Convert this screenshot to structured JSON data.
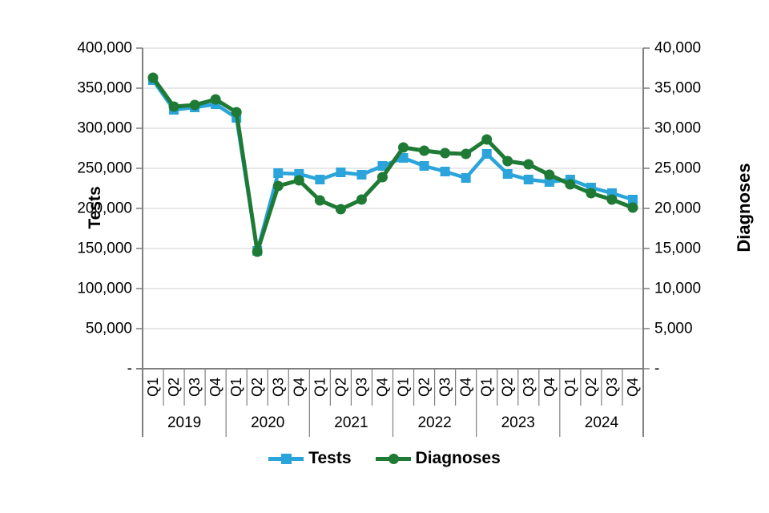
{
  "chart_data": {
    "type": "line",
    "title": "",
    "categories": [
      "Q1",
      "Q2",
      "Q3",
      "Q4",
      "Q1",
      "Q2",
      "Q3",
      "Q4",
      "Q1",
      "Q2",
      "Q3",
      "Q4",
      "Q1",
      "Q2",
      "Q3",
      "Q4",
      "Q1",
      "Q2",
      "Q3",
      "Q4",
      "Q1",
      "Q2",
      "Q3",
      "Q4"
    ],
    "year_groups": [
      "2019",
      "2020",
      "2021",
      "2022",
      "2023",
      "2024"
    ],
    "series": [
      {
        "name": "Tests",
        "axis": "left",
        "color": "#2AA4DA",
        "marker": "square",
        "values": [
          360000,
          323000,
          326000,
          330000,
          313000,
          147000,
          244000,
          243000,
          236000,
          245000,
          242000,
          253000,
          263000,
          253000,
          246000,
          238000,
          268000,
          243000,
          236000,
          233000,
          236000,
          226000,
          219000,
          211000
        ]
      },
      {
        "name": "Diagnoses",
        "axis": "right",
        "color": "#1E7A34",
        "marker": "circle",
        "values": [
          36300,
          32700,
          32900,
          33600,
          32000,
          14600,
          22800,
          23500,
          21000,
          19900,
          21100,
          23900,
          27600,
          27200,
          26900,
          26800,
          28600,
          25900,
          25500,
          24200,
          23000,
          21900,
          21100,
          20100
        ]
      }
    ],
    "left_axis": {
      "title": "Tests",
      "tick_labels": [
        "400,000",
        "350,000",
        "300,000",
        "250,000",
        "200,000",
        "150,000",
        "100,000",
        "50,000",
        "-"
      ],
      "min": 0,
      "max": 400000,
      "step": 50000
    },
    "right_axis": {
      "title": "Diagnoses",
      "tick_labels": [
        "40,000",
        "35,000",
        "30,000",
        "25,000",
        "20,000",
        "15,000",
        "10,000",
        "5,000",
        "-"
      ],
      "min": 0,
      "max": 40000,
      "step": 5000
    },
    "legend": {
      "position": "bottom"
    },
    "grid": true
  },
  "styles": {
    "grid_color": "#D9D9D9",
    "axis_color": "#7F7F7F",
    "text_color": "#000000"
  }
}
